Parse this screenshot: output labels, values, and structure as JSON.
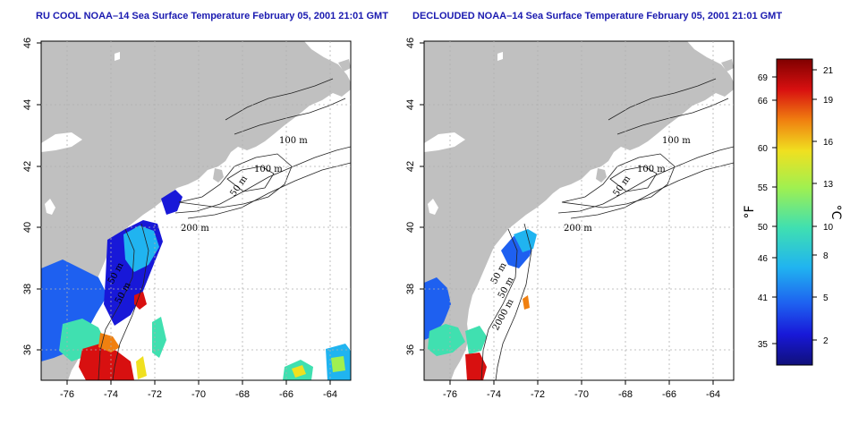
{
  "panels": [
    {
      "id": "left",
      "title": "RU COOL NOAA–14 Sea Surface Temperature February 05, 2001 21:01 GMT",
      "contour_labels": [
        "100 m",
        "100 m",
        "50 m",
        "50 m",
        "200 m",
        "50 m"
      ]
    },
    {
      "id": "right",
      "title": "DECLOUDED NOAA–14 Sea Surface Temperature February 05, 2001 21:01 GMT",
      "contour_labels": [
        "100 m",
        "100 m",
        "50 m",
        "50 m",
        "200 m",
        "50 m",
        "2000 m"
      ]
    }
  ],
  "axes": {
    "lon_ticks": [
      "-76",
      "-74",
      "-72",
      "-70",
      "-68",
      "-66",
      "-64"
    ],
    "lat_ticks": [
      "36",
      "38",
      "40",
      "42",
      "44",
      "46"
    ],
    "lon_range": [
      -77,
      -63
    ],
    "lat_range": [
      35,
      46
    ]
  },
  "colorbar": {
    "fahrenheit_label": "°F",
    "celsius_label": "°C",
    "fahrenheit_ticks": [
      "69",
      "66",
      "60",
      "55",
      "50",
      "46",
      "41",
      "35"
    ],
    "celsius_ticks": [
      "21",
      "19",
      "16",
      "13",
      "10",
      "8",
      "5",
      "2"
    ],
    "colors": [
      "#10107a",
      "#1818d8",
      "#1e60f0",
      "#20b4f0",
      "#40e0b0",
      "#a0f050",
      "#f0e020",
      "#f08010",
      "#d81010",
      "#800000"
    ]
  },
  "colors": {
    "land": "#c0c0c0",
    "ocean": "#ffffff",
    "grid": "#b0b0b0",
    "contour": "#222222",
    "title": "#1a1ab0"
  }
}
